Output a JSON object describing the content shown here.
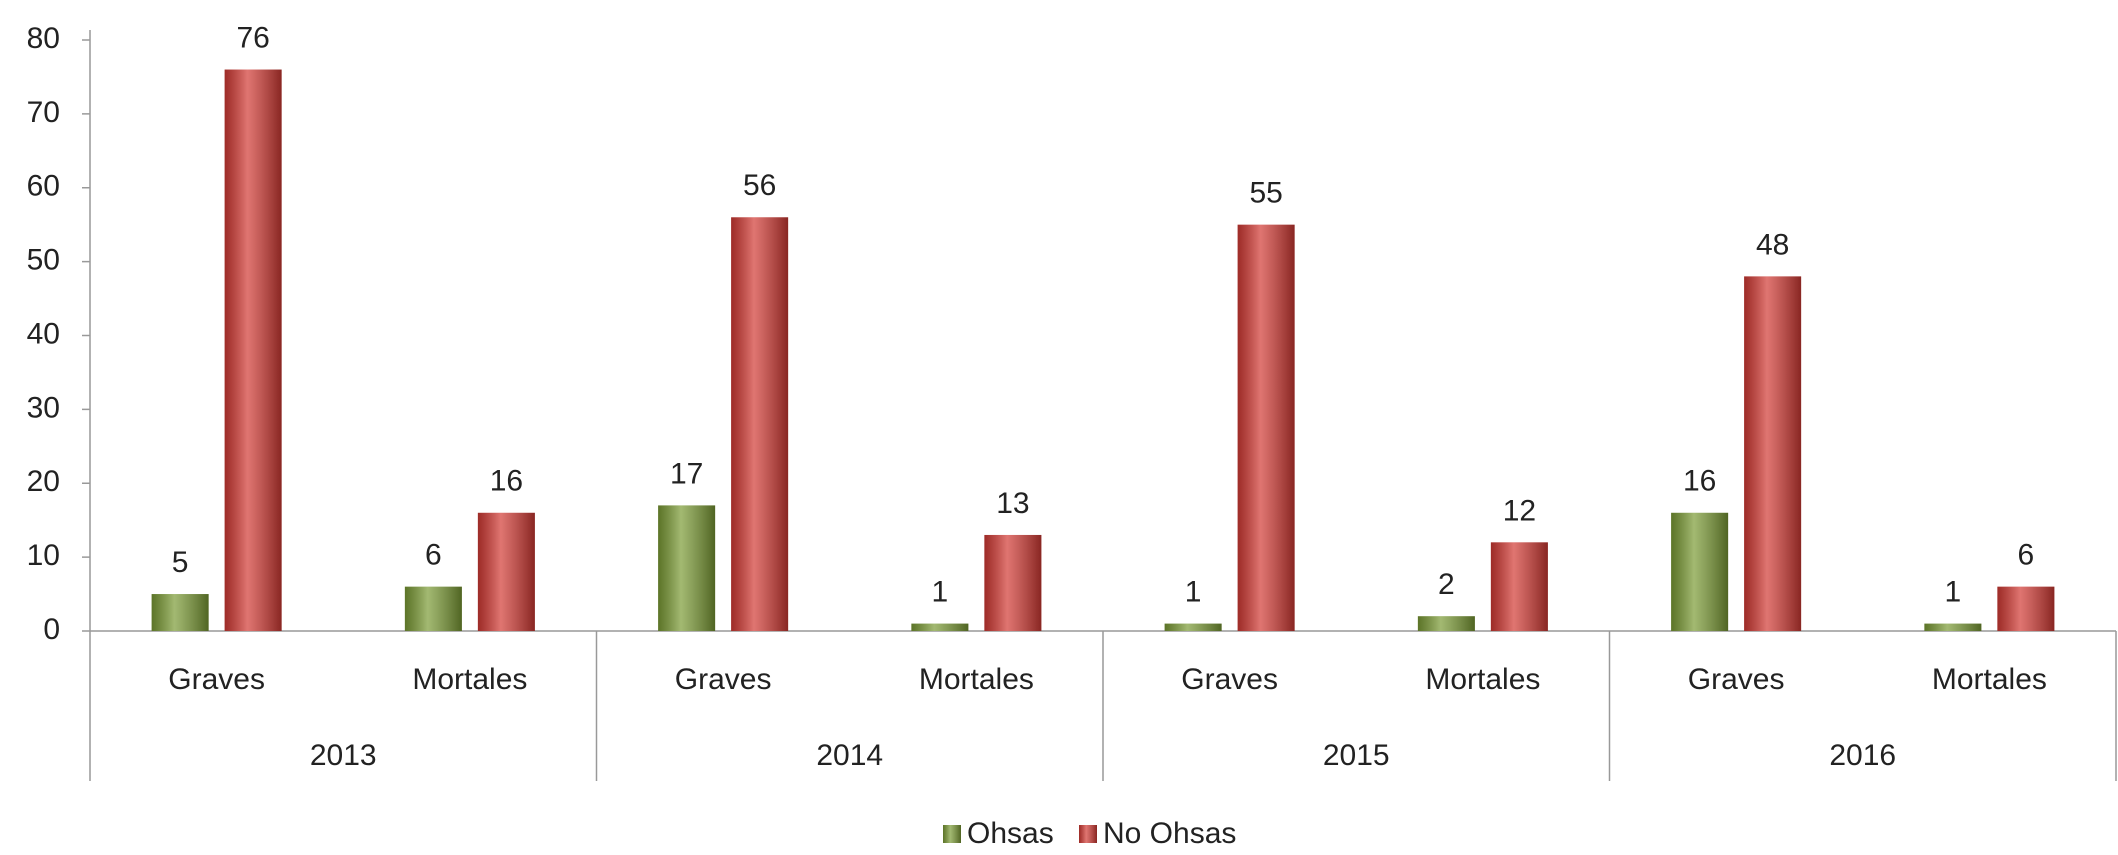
{
  "chart_data": {
    "type": "bar",
    "categories": [
      "Graves",
      "Mortales",
      "Graves",
      "Mortales",
      "Graves",
      "Mortales",
      "Graves",
      "Mortales"
    ],
    "groups": [
      "2013",
      "2014",
      "2015",
      "2016"
    ],
    "series": [
      {
        "name": "Ohsas",
        "color": "#7b9b35",
        "values": [
          5,
          6,
          17,
          1,
          1,
          2,
          16,
          1
        ]
      },
      {
        "name": "No Ohsas",
        "color": "#d23a34",
        "values": [
          76,
          16,
          56,
          13,
          55,
          12,
          48,
          6
        ]
      }
    ],
    "ylim": [
      0,
      80
    ],
    "yticks": [
      0,
      10,
      20,
      30,
      40,
      50,
      60,
      70,
      80
    ],
    "grid": false,
    "legend": "bottom"
  }
}
